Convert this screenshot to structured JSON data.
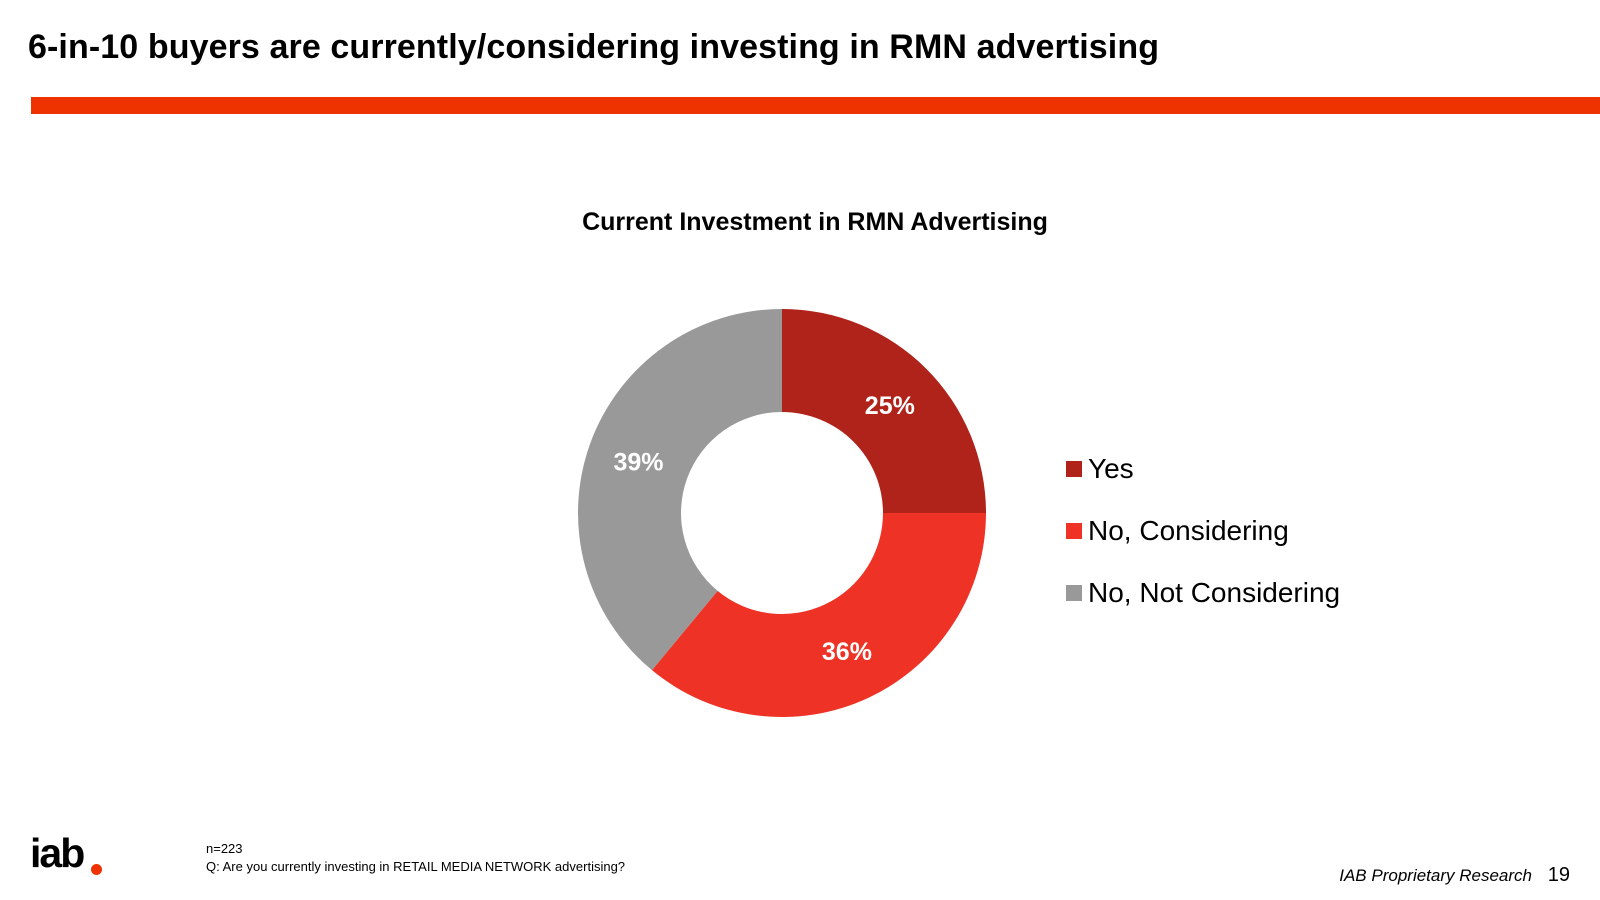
{
  "slide": {
    "title": "6-in-10 buyers are currently/considering investing in RMN advertising",
    "accent_color": "#ee3300"
  },
  "chart_data": {
    "type": "pie",
    "donut": true,
    "title": "Current Investment in RMN Advertising",
    "legend_position": "right",
    "categories": [
      "Yes",
      "No, Considering",
      "No, Not Considering"
    ],
    "values": [
      25,
      36,
      39
    ],
    "value_labels": [
      "25%",
      "36%",
      "39%"
    ],
    "colors": [
      "#b0231a",
      "#ee3326",
      "#999999"
    ]
  },
  "footer": {
    "sample": "n=223",
    "question": "Q: Are you currently investing in RETAIL MEDIA NETWORK advertising?",
    "source": "IAB Proprietary Research",
    "page_number": "19",
    "logo_text": "iab",
    "logo_dot_color": "#ee3300"
  }
}
